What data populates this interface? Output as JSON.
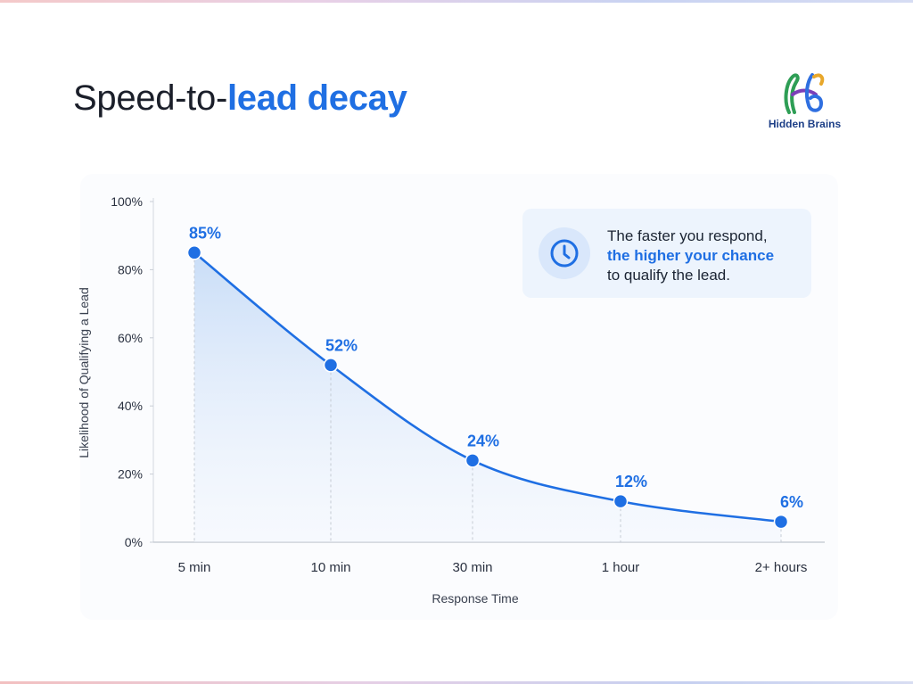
{
  "header": {
    "title_plain": "Speed-to-",
    "title_accent": "lead decay"
  },
  "logo": {
    "text": "Hidden Brains",
    "icon": "hidden-brains-logo-icon"
  },
  "callout": {
    "icon": "clock-icon",
    "line1": "The faster you respond,",
    "line2": "the higher your chance",
    "line3": "to qualify the lead."
  },
  "colors": {
    "accent": "#1f6fe3",
    "text": "#1b1f2a",
    "axis": "#c3c8d1"
  },
  "chart_data": {
    "type": "line",
    "categories": [
      "5 min",
      "10 min",
      "30 min",
      "1 hour",
      "2+ hours"
    ],
    "values": [
      85,
      52,
      24,
      12,
      6
    ],
    "data_labels": [
      "85%",
      "52%",
      "24%",
      "12%",
      "6%"
    ],
    "xlabel": "Response Time",
    "ylabel": "Likelihood of Qualifying a Lead",
    "ylim": [
      0,
      100
    ],
    "yticks": [
      "0%",
      "20%",
      "40%",
      "60%",
      "80%",
      "100%"
    ],
    "grid": false,
    "area_fill": true,
    "color": "#1f6fe3"
  }
}
